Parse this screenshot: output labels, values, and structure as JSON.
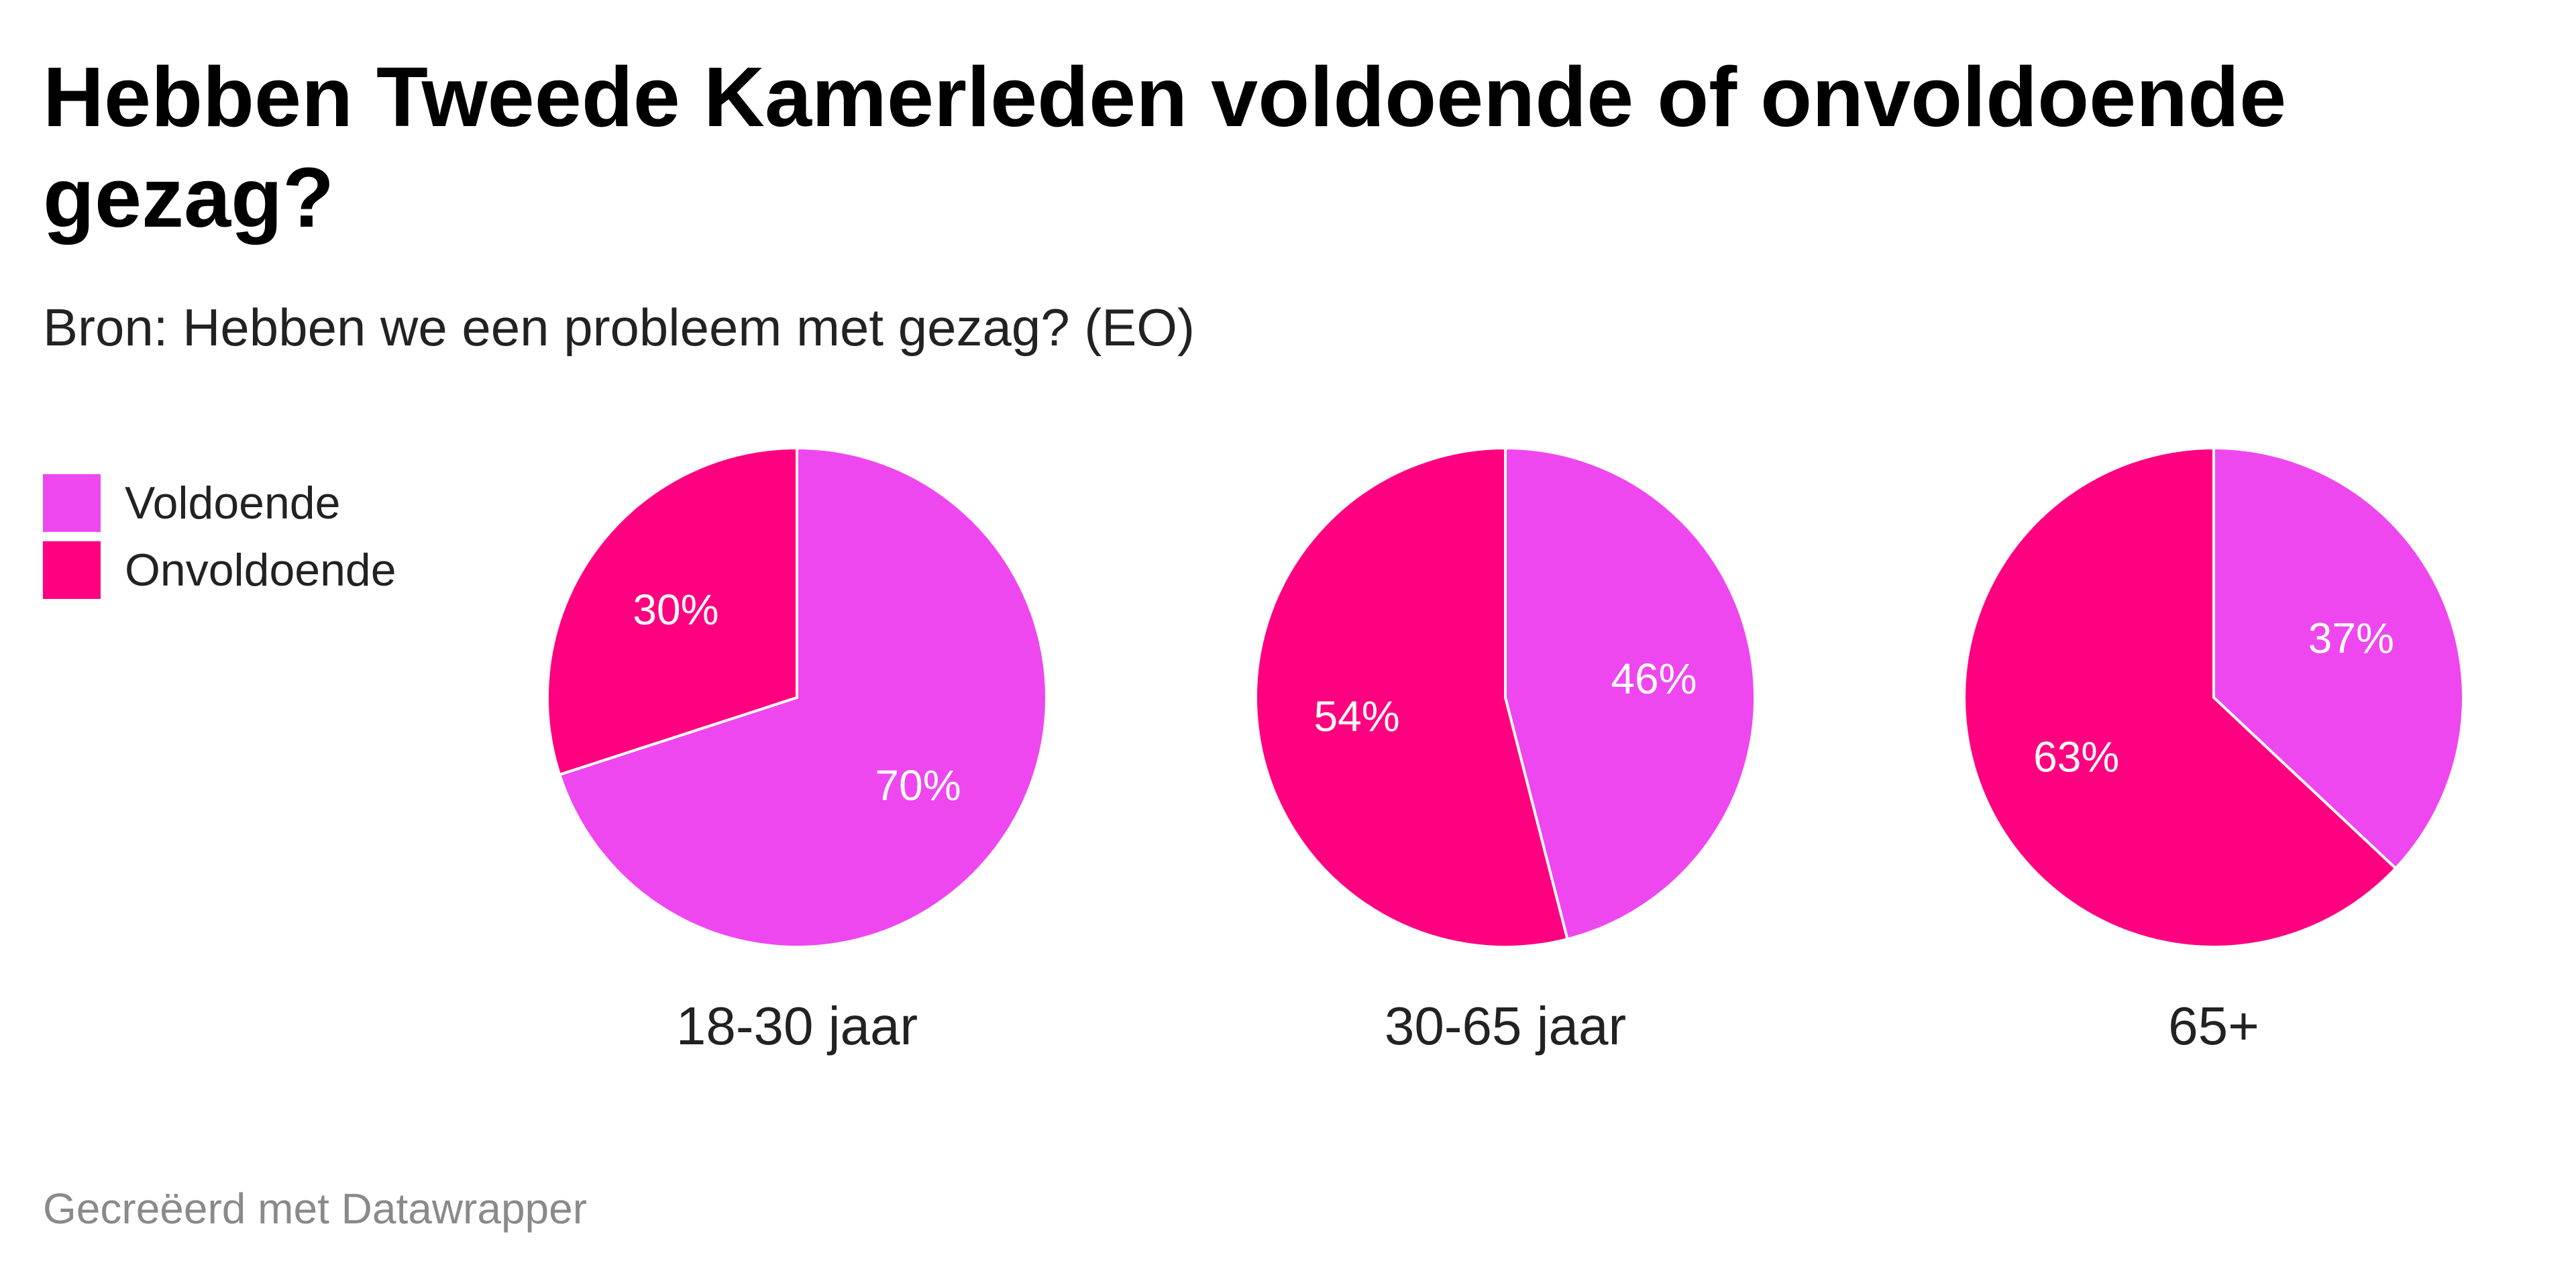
{
  "title": "Hebben Tweede Kamerleden voldoende of onvoldoende gezag?",
  "subtitle": "Bron: Hebben we een probleem met gezag? (EO)",
  "footer": "Gecreëerd met Datawrapper",
  "colors": {
    "voldoende": "#ef47ef",
    "onvoldoende": "#ff0080",
    "text": "#222222",
    "slice_label": "#ffffff"
  },
  "legend": [
    {
      "label": "Voldoende",
      "color": "#ef47ef"
    },
    {
      "label": "Onvoldoende",
      "color": "#ff0080"
    }
  ],
  "chart_data": [
    {
      "type": "pie",
      "label": "18-30 jaar",
      "slices": [
        {
          "name": "Voldoende",
          "value": 70,
          "display": "70%"
        },
        {
          "name": "Onvoldoende",
          "value": 30,
          "display": "30%"
        }
      ]
    },
    {
      "type": "pie",
      "label": "30-65 jaar",
      "slices": [
        {
          "name": "Voldoende",
          "value": 46,
          "display": "46%"
        },
        {
          "name": "Onvoldoende",
          "value": 54,
          "display": "54%"
        }
      ]
    },
    {
      "type": "pie",
      "label": "65+",
      "slices": [
        {
          "name": "Voldoende",
          "value": 37,
          "display": "37%"
        },
        {
          "name": "Onvoldoende",
          "value": 63,
          "display": "63%"
        }
      ]
    }
  ]
}
